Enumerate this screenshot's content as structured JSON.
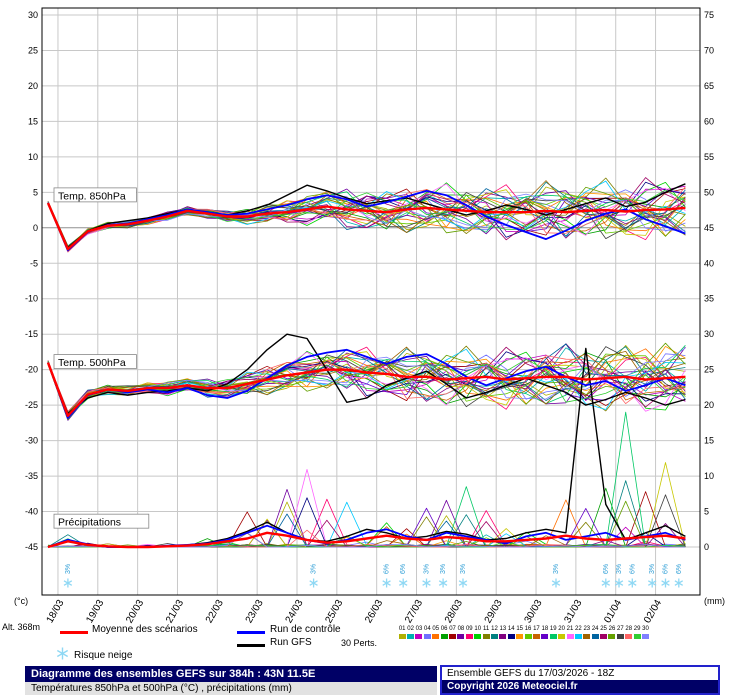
{
  "chart_data": {
    "type": "line",
    "title": "Diagramme des ensembles GEFS sur 384h : 43N 11.5E",
    "subtitle": "Températures 850hPa et 500hPa (°C) , précipitations (mm)",
    "run": "Ensemble GEFS du 17/03/2026 - 18Z",
    "categories": [
      "18/03",
      "19/03",
      "20/03",
      "21/03",
      "22/03",
      "23/03",
      "24/03",
      "25/03",
      "26/03",
      "27/03",
      "28/03",
      "29/03",
      "30/03",
      "31/03",
      "01/04",
      "02/04"
    ],
    "step_hours": 12,
    "total_hours": 384,
    "y_left": {
      "unit": "(°c)",
      "min": -45,
      "max": 30,
      "step": 5
    },
    "y_right": {
      "unit": "(mm)",
      "min": 0,
      "max": 75,
      "step": 5
    },
    "sections": [
      {
        "label": "Temp. 850hPa",
        "at_value": 4.5
      },
      {
        "label": "Temp. 500hPa",
        "at_value": -19.0
      },
      {
        "label": "Précipitations",
        "at_value": -41.5
      }
    ],
    "series": {
      "mean_850": [
        3.5,
        -3,
        -0.5,
        0.3,
        0.5,
        1,
        1.6,
        2.4,
        2,
        1.6,
        1.6,
        2,
        2.2,
        2.6,
        3,
        2.6,
        2.4,
        2.2,
        2.6,
        2.8,
        2.6,
        2.4,
        2.2,
        2.2,
        2.2,
        2.4,
        2.2,
        2.4,
        2.5,
        2.3,
        2.5,
        2.6,
        2.8
      ],
      "control_850": [
        3.5,
        -3.2,
        -0.6,
        0.4,
        0.6,
        1.2,
        1.8,
        2.6,
        2.2,
        1.8,
        2,
        2.6,
        3.2,
        4,
        4.6,
        4,
        3,
        3.6,
        4.4,
        5.2,
        4.6,
        3.2,
        1.6,
        0.4,
        -0.6,
        -1.6,
        -0.4,
        1,
        2,
        2.6,
        1.2,
        0.2,
        -0.8
      ],
      "gfs_850": [
        3.5,
        -2.8,
        -0.4,
        0.6,
        1,
        1.4,
        2,
        2.6,
        2.2,
        1.8,
        2.4,
        3.2,
        4.6,
        6,
        5.2,
        4.2,
        3.4,
        3.8,
        4.2,
        3.4,
        2.6,
        1.8,
        2.4,
        3.2,
        2.6,
        1.8,
        2.6,
        3.4,
        4.2,
        3,
        3.6,
        5,
        6.2
      ],
      "spread_850": [
        0.4,
        0.6,
        0.7,
        0.7,
        0.8,
        0.8,
        0.9,
        1,
        1,
        1.2,
        1.6,
        2,
        2.6,
        3.2,
        3.6,
        4,
        4.2,
        4.4,
        4.6,
        5,
        5,
        5.2,
        5.2,
        5.4,
        5.4,
        5.6,
        5.8,
        5.8,
        6,
        6,
        6.2,
        6.4,
        6.4
      ],
      "mean_500": [
        -19,
        -26.5,
        -23.5,
        -22.8,
        -23,
        -22.6,
        -22.6,
        -22.2,
        -22.6,
        -22.6,
        -22,
        -21.4,
        -20.8,
        -20.4,
        -20,
        -20,
        -20.4,
        -20.6,
        -21,
        -21,
        -21.4,
        -21.2,
        -21,
        -21.4,
        -21.2,
        -21,
        -21,
        -21.4,
        -21.2,
        -21,
        -21.4,
        -21.2,
        -21
      ],
      "control_500": [
        -19,
        -26.8,
        -23.6,
        -22.8,
        -23.2,
        -22.8,
        -23.2,
        -22.6,
        -23.6,
        -24,
        -23,
        -21.2,
        -19.4,
        -18.2,
        -17.6,
        -17.2,
        -18.2,
        -19.2,
        -18.2,
        -17.8,
        -19.2,
        -21,
        -22.2,
        -21.2,
        -20.2,
        -19.6,
        -21,
        -22.2,
        -21.6,
        -23,
        -22.2,
        -21.2,
        -22.2
      ],
      "gfs_500": [
        -19,
        -26.2,
        -24,
        -23.2,
        -23.6,
        -23.2,
        -23,
        -22.6,
        -23,
        -22,
        -20,
        -17.2,
        -15,
        -15.6,
        -20,
        -24.6,
        -24,
        -22.2,
        -21.2,
        -20.2,
        -22,
        -24,
        -23.2,
        -22.2,
        -21.2,
        -22.2,
        -23.2,
        -25,
        -24.2,
        -23.2,
        -24,
        -25,
        -24.2
      ],
      "spread_500": [
        0.5,
        1,
        1,
        1,
        1.1,
        1.2,
        1.5,
        1.6,
        1.8,
        2,
        2.5,
        3,
        3.5,
        4,
        4.2,
        4.5,
        5,
        5,
        5.5,
        5.5,
        6,
        6,
        6,
        6.2,
        6.2,
        6.4,
        6.4,
        6.6,
        6.8,
        6.8,
        7,
        7,
        7
      ],
      "mean_precip_mm": [
        0,
        0.8,
        0.3,
        0.1,
        0,
        0,
        0.1,
        0.2,
        0.4,
        0.8,
        1.2,
        2,
        1.6,
        1,
        0.6,
        0.8,
        1.2,
        1.6,
        1.2,
        1,
        1.4,
        1.2,
        0.8,
        0.8,
        1,
        1.2,
        1.6,
        1.2,
        1,
        1.2,
        1.4,
        1.6,
        1.2
      ],
      "control_precip_mm": [
        0,
        1,
        0.4,
        0,
        0,
        0,
        0.2,
        0.3,
        0.5,
        1,
        2,
        3,
        2,
        1,
        0.5,
        1,
        2,
        2.5,
        1.5,
        1,
        2,
        1.5,
        1,
        0.5,
        1.5,
        2,
        1,
        1.5,
        2,
        1,
        1.5,
        2,
        1
      ],
      "gfs_precip_mm": [
        0,
        0.9,
        0.3,
        0,
        0,
        0,
        0.1,
        0.3,
        0.6,
        1.2,
        2.2,
        3.5,
        2,
        1,
        0.8,
        1.5,
        2.5,
        2,
        1.2,
        1.5,
        2.2,
        1.8,
        1,
        1.2,
        2,
        2.5,
        2,
        28,
        6,
        1,
        2,
        3,
        1.5
      ],
      "precip_env_mm": [
        0.5,
        2,
        1,
        0.5,
        0.5,
        0.5,
        1,
        2,
        3,
        4,
        6,
        8,
        10,
        14,
        18,
        10,
        8,
        12,
        10,
        8,
        10,
        12,
        8,
        8,
        10,
        12,
        10,
        12,
        10,
        20,
        14,
        12,
        8
      ]
    },
    "members": {
      "count": 30,
      "labels": [
        "01",
        "02",
        "03",
        "04",
        "05",
        "06",
        "07",
        "08",
        "09",
        "10",
        "11",
        "12",
        "13",
        "14",
        "15",
        "16",
        "17",
        "18",
        "19",
        "20",
        "21",
        "22",
        "23",
        "24",
        "25",
        "26",
        "27",
        "28",
        "29",
        "30"
      ],
      "colors": [
        "#b0b000",
        "#00b0b0",
        "#c000c0",
        "#7070ff",
        "#ff7000",
        "#00a000",
        "#a00000",
        "#7000a0",
        "#ff0070",
        "#00d000",
        "#808000",
        "#008080",
        "#800080",
        "#000080",
        "#ff9600",
        "#64c800",
        "#c86400",
        "#6400c8",
        "#00c864",
        "#c8c800",
        "#ff64ff",
        "#00c8ff",
        "#a06400",
        "#0064a0",
        "#a00064",
        "#64a000",
        "#404040",
        "#ff6464",
        "#32cd32",
        "#8080ff"
      ]
    },
    "snow_markers": [
      {
        "t": 12,
        "pct": "3%"
      },
      {
        "t": 160,
        "pct": "3%"
      },
      {
        "t": 204,
        "pct": "6%"
      },
      {
        "t": 214,
        "pct": "6%"
      },
      {
        "t": 228,
        "pct": "3%"
      },
      {
        "t": 238,
        "pct": "3%"
      },
      {
        "t": 250,
        "pct": "3%"
      },
      {
        "t": 306,
        "pct": "3%"
      },
      {
        "t": 336,
        "pct": "6%"
      },
      {
        "t": 344,
        "pct": "3%"
      },
      {
        "t": 352,
        "pct": "6%"
      },
      {
        "t": 364,
        "pct": "3%"
      },
      {
        "t": 372,
        "pct": "6%"
      },
      {
        "t": 380,
        "pct": "6%"
      }
    ],
    "colors": {
      "mean": "#ff0000",
      "control": "#0000ff",
      "gfs": "#000000",
      "grid": "#c8c8c8",
      "zero_line": "#909090",
      "snow": "#8fd8f4",
      "snow_text": "#2e9ed6"
    }
  },
  "axis": {
    "alt_label": "Alt. 368m",
    "left_unit": "(°c)",
    "right_unit": "(mm)"
  },
  "legend": {
    "mean": "Moyenne des scénarios",
    "control": "Run de contrôle",
    "gfs": "Run GFS",
    "snow": "Risque neige",
    "perts": "30 Perts."
  },
  "footer": {
    "title": "Diagramme des ensembles GEFS sur 384h : 43N 11.5E",
    "subtitle": "Températures 850hPa et 500hPa (°C) , précipitations (mm)",
    "run_info": "Ensemble GEFS du 17/03/2026 - 18Z",
    "copyright": "Copyright 2026 Meteociel.fr"
  }
}
